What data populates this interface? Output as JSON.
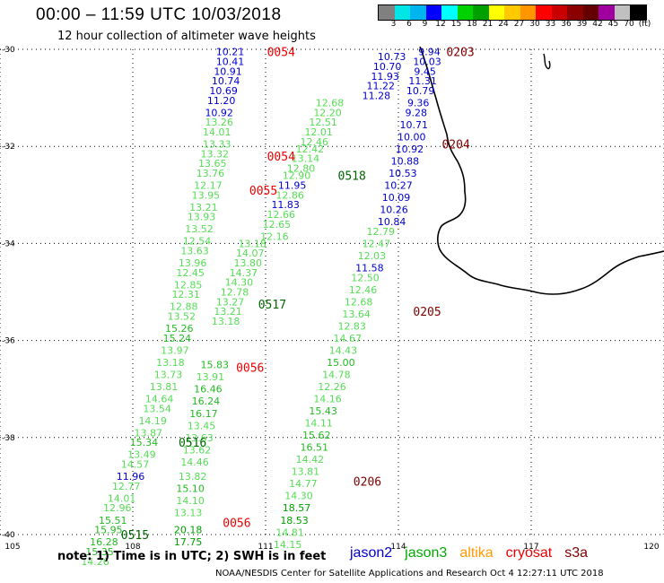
{
  "title": "00:00 – 11:59 UTC 10/03/2018",
  "subtitle": "12 hour collection of altimeter wave heights",
  "legend": {
    "colors": [
      "#808080",
      "#00e5e5",
      "#00b4f0",
      "#0000ff",
      "#00ffff",
      "#00d200",
      "#00a000",
      "#ffff00",
      "#ffc800",
      "#ff9600",
      "#ff0000",
      "#c80000",
      "#8b0000",
      "#640000",
      "#a000a0",
      "#c0c0c0",
      "#000000"
    ],
    "labels": [
      "3",
      "6",
      "9",
      "12",
      "15",
      "18",
      "21",
      "24",
      "27",
      "30",
      "33",
      "36",
      "39",
      "42",
      "45",
      "70",
      "(ft)"
    ]
  },
  "axes": {
    "x_ticks": [
      "105",
      "108",
      "111",
      "114",
      "117",
      "120"
    ],
    "y_ticks": [
      "-30",
      "-32",
      "-34",
      "-36",
      "-38",
      "-40"
    ]
  },
  "note": "note: 1) Time is in UTC; 2) SWH is in feet",
  "satellites": [
    {
      "name": "jason2",
      "color": "#0000cc"
    },
    {
      "name": "jason3",
      "color": "#00aa00"
    },
    {
      "name": "altika",
      "color": "#ff9900"
    },
    {
      "name": "cryosat",
      "color": "#ee0000"
    },
    {
      "name": "s3a",
      "color": "#800000"
    }
  ],
  "credit": "NOAA/NESDIS Center for Satellite Applications and Research   Oct  4 12:27:11 UTC 2018",
  "time_labels": [
    {
      "text": "0054",
      "lon": 111.35,
      "lat": -30.05,
      "color": "#ee0000"
    },
    {
      "text": "0054",
      "lon": 111.35,
      "lat": -32.2,
      "color": "#ee0000"
    },
    {
      "text": "0055",
      "lon": 110.95,
      "lat": -32.9,
      "color": "#ee0000"
    },
    {
      "text": "0056",
      "lon": 110.65,
      "lat": -36.55,
      "color": "#ee0000"
    },
    {
      "text": "0056",
      "lon": 110.35,
      "lat": -39.75,
      "color": "#ee0000"
    },
    {
      "text": "0203",
      "lon": 115.4,
      "lat": -30.05,
      "color": "#800000"
    },
    {
      "text": "0204",
      "lon": 115.3,
      "lat": -31.95,
      "color": "#800000"
    },
    {
      "text": "0205",
      "lon": 114.65,
      "lat": -35.4,
      "color": "#800000"
    },
    {
      "text": "0206",
      "lon": 113.3,
      "lat": -38.9,
      "color": "#800000"
    },
    {
      "text": "0518",
      "lon": 112.95,
      "lat": -32.6,
      "color": "#006600"
    },
    {
      "text": "0517",
      "lon": 111.15,
      "lat": -35.25,
      "color": "#006600"
    },
    {
      "text": "0516",
      "lon": 109.35,
      "lat": -38.1,
      "color": "#006600"
    },
    {
      "text": "0515",
      "lon": 108.05,
      "lat": -40.0,
      "color": "#006600"
    }
  ],
  "swh_values": [
    {
      "v": "10.21",
      "lon": 110.2,
      "lat": -30.05,
      "c": "#0000cc"
    },
    {
      "v": "10.41",
      "lon": 110.2,
      "lat": -30.25,
      "c": "#0000cc"
    },
    {
      "v": "10.91",
      "lon": 110.15,
      "lat": -30.45,
      "c": "#0000cc"
    },
    {
      "v": "10.74",
      "lon": 110.1,
      "lat": -30.65,
      "c": "#0000cc"
    },
    {
      "v": "10.69",
      "lon": 110.05,
      "lat": -30.85,
      "c": "#0000cc"
    },
    {
      "v": "11.20",
      "lon": 110.0,
      "lat": -31.05,
      "c": "#0000cc"
    },
    {
      "v": "10.92",
      "lon": 109.95,
      "lat": -31.3,
      "c": "#0000cc"
    },
    {
      "v": "13.26",
      "lon": 109.95,
      "lat": -31.5,
      "c": "#55dd55"
    },
    {
      "v": "14.01",
      "lon": 109.9,
      "lat": -31.7,
      "c": "#55dd55"
    },
    {
      "v": "13.33",
      "lon": 109.9,
      "lat": -31.95,
      "c": "#55dd55"
    },
    {
      "v": "13.32",
      "lon": 109.85,
      "lat": -32.15,
      "c": "#55dd55"
    },
    {
      "v": "13.65",
      "lon": 109.8,
      "lat": -32.35,
      "c": "#55dd55"
    },
    {
      "v": "13.76",
      "lon": 109.75,
      "lat": -32.55,
      "c": "#55dd55"
    },
    {
      "v": "12.17",
      "lon": 109.7,
      "lat": -32.8,
      "c": "#55dd55"
    },
    {
      "v": "13.95",
      "lon": 109.65,
      "lat": -33.0,
      "c": "#55dd55"
    },
    {
      "v": "13.21",
      "lon": 109.6,
      "lat": -33.25,
      "c": "#55dd55"
    },
    {
      "v": "13.93",
      "lon": 109.55,
      "lat": -33.45,
      "c": "#55dd55"
    },
    {
      "v": "13.52",
      "lon": 109.5,
      "lat": -33.7,
      "c": "#55dd55"
    },
    {
      "v": "12.54",
      "lon": 109.45,
      "lat": -33.95,
      "c": "#55dd55"
    },
    {
      "v": "13.63",
      "lon": 109.4,
      "lat": -34.15,
      "c": "#55dd55"
    },
    {
      "v": "13.96",
      "lon": 109.35,
      "lat": -34.4,
      "c": "#55dd55"
    },
    {
      "v": "12.45",
      "lon": 109.3,
      "lat": -34.6,
      "c": "#55dd55"
    },
    {
      "v": "12.85",
      "lon": 109.25,
      "lat": -34.85,
      "c": "#55dd55"
    },
    {
      "v": "12.31",
      "lon": 109.2,
      "lat": -35.05,
      "c": "#55dd55"
    },
    {
      "v": "12.88",
      "lon": 109.15,
      "lat": -35.3,
      "c": "#55dd55"
    },
    {
      "v": "13.52",
      "lon": 109.1,
      "lat": -35.5,
      "c": "#55dd55"
    },
    {
      "v": "15.26",
      "lon": 109.05,
      "lat": -35.75,
      "c": "#22bb22"
    },
    {
      "v": "15.24",
      "lon": 109.0,
      "lat": -35.95,
      "c": "#22bb22"
    },
    {
      "v": "13.97",
      "lon": 108.95,
      "lat": -36.2,
      "c": "#55dd55"
    },
    {
      "v": "13.18",
      "lon": 108.85,
      "lat": -36.45,
      "c": "#55dd55"
    },
    {
      "v": "13.73",
      "lon": 108.8,
      "lat": -36.7,
      "c": "#55dd55"
    },
    {
      "v": "13.81",
      "lon": 108.7,
      "lat": -36.95,
      "c": "#55dd55"
    },
    {
      "v": "14.64",
      "lon": 108.6,
      "lat": -37.2,
      "c": "#55dd55"
    },
    {
      "v": "13.54",
      "lon": 108.55,
      "lat": -37.4,
      "c": "#55dd55"
    },
    {
      "v": "14.19",
      "lon": 108.45,
      "lat": -37.65,
      "c": "#55dd55"
    },
    {
      "v": "13.87",
      "lon": 108.35,
      "lat": -37.9,
      "c": "#55dd55"
    },
    {
      "v": "15.34",
      "lon": 108.25,
      "lat": -38.1,
      "c": "#22bb22"
    },
    {
      "v": "13.49",
      "lon": 108.2,
      "lat": -38.35,
      "c": "#55dd55"
    },
    {
      "v": "14.57",
      "lon": 108.05,
      "lat": -38.55,
      "c": "#55dd55"
    },
    {
      "v": "11.96",
      "lon": 107.95,
      "lat": -38.8,
      "c": "#0000cc"
    },
    {
      "v": "12.77",
      "lon": 107.85,
      "lat": -39.0,
      "c": "#55dd55"
    },
    {
      "v": "14.01",
      "lon": 107.75,
      "lat": -39.25,
      "c": "#55dd55"
    },
    {
      "v": "12.96",
      "lon": 107.65,
      "lat": -39.45,
      "c": "#55dd55"
    },
    {
      "v": "15.51",
      "lon": 107.55,
      "lat": -39.7,
      "c": "#22bb22"
    },
    {
      "v": "15.95",
      "lon": 107.45,
      "lat": -39.9,
      "c": "#22bb22"
    },
    {
      "v": "16.28",
      "lon": 107.35,
      "lat": -40.15,
      "c": "#22bb22"
    },
    {
      "v": "15.35",
      "lon": 107.25,
      "lat": -40.35,
      "c": "#22bb22"
    },
    {
      "v": "14.26",
      "lon": 107.15,
      "lat": -40.55,
      "c": "#55dd55"
    },
    {
      "v": "14.07",
      "lon": 110.65,
      "lat": -34.2,
      "c": "#55dd55"
    },
    {
      "v": "13.18",
      "lon": 110.7,
      "lat": -34.0,
      "c": "#55dd55"
    },
    {
      "v": "13.80",
      "lon": 110.6,
      "lat": -34.4,
      "c": "#55dd55"
    },
    {
      "v": "14.37",
      "lon": 110.5,
      "lat": -34.6,
      "c": "#55dd55"
    },
    {
      "v": "14.30",
      "lon": 110.4,
      "lat": -34.8,
      "c": "#55dd55"
    },
    {
      "v": "12.78",
      "lon": 110.3,
      "lat": -35.0,
      "c": "#55dd55"
    },
    {
      "v": "13.27",
      "lon": 110.2,
      "lat": -35.2,
      "c": "#55dd55"
    },
    {
      "v": "13.21",
      "lon": 110.15,
      "lat": -35.4,
      "c": "#55dd55"
    },
    {
      "v": "13.18",
      "lon": 110.1,
      "lat": -35.6,
      "c": "#55dd55"
    },
    {
      "v": "15.83",
      "lon": 109.85,
      "lat": -36.5,
      "c": "#22bb22"
    },
    {
      "v": "13.91",
      "lon": 109.75,
      "lat": -36.75,
      "c": "#55dd55"
    },
    {
      "v": "16.46",
      "lon": 109.7,
      "lat": -37.0,
      "c": "#22bb22"
    },
    {
      "v": "16.24",
      "lon": 109.65,
      "lat": -37.25,
      "c": "#22bb22"
    },
    {
      "v": "16.17",
      "lon": 109.6,
      "lat": -37.5,
      "c": "#22bb22"
    },
    {
      "v": "13.45",
      "lon": 109.55,
      "lat": -37.75,
      "c": "#55dd55"
    },
    {
      "v": "13.63",
      "lon": 109.5,
      "lat": -38.0,
      "c": "#55dd55"
    },
    {
      "v": "13.62",
      "lon": 109.45,
      "lat": -38.25,
      "c": "#55dd55"
    },
    {
      "v": "14.46",
      "lon": 109.4,
      "lat": -38.5,
      "c": "#55dd55"
    },
    {
      "v": "13.82",
      "lon": 109.35,
      "lat": -38.8,
      "c": "#55dd55"
    },
    {
      "v": "15.10",
      "lon": 109.3,
      "lat": -39.05,
      "c": "#22bb22"
    },
    {
      "v": "14.10",
      "lon": 109.3,
      "lat": -39.3,
      "c": "#55dd55"
    },
    {
      "v": "13.13",
      "lon": 109.25,
      "lat": -39.55,
      "c": "#55dd55"
    },
    {
      "v": "20.18",
      "lon": 109.25,
      "lat": -39.9,
      "c": "#00a000"
    },
    {
      "v": "17.75",
      "lon": 109.25,
      "lat": -40.15,
      "c": "#00a000"
    },
    {
      "v": "12.68",
      "lon": 112.45,
      "lat": -31.1,
      "c": "#55dd55"
    },
    {
      "v": "12.20",
      "lon": 112.4,
      "lat": -31.3,
      "c": "#55dd55"
    },
    {
      "v": "12.51",
      "lon": 112.3,
      "lat": -31.5,
      "c": "#55dd55"
    },
    {
      "v": "12.01",
      "lon": 112.2,
      "lat": -31.7,
      "c": "#55dd55"
    },
    {
      "v": "12.46",
      "lon": 112.1,
      "lat": -31.9,
      "c": "#55dd55"
    },
    {
      "v": "12.42",
      "lon": 112.0,
      "lat": -32.05,
      "c": "#55dd55"
    },
    {
      "v": "13.14",
      "lon": 111.9,
      "lat": -32.25,
      "c": "#55dd55"
    },
    {
      "v": "12.80",
      "lon": 111.8,
      "lat": -32.45,
      "c": "#55dd55"
    },
    {
      "v": "12.90",
      "lon": 111.7,
      "lat": -32.6,
      "c": "#55dd55"
    },
    {
      "v": "11.95",
      "lon": 111.6,
      "lat": -32.8,
      "c": "#0000cc"
    },
    {
      "v": "12.86",
      "lon": 111.55,
      "lat": -33.0,
      "c": "#55dd55"
    },
    {
      "v": "11.83",
      "lon": 111.45,
      "lat": -33.2,
      "c": "#0000cc"
    },
    {
      "v": "12.66",
      "lon": 111.35,
      "lat": -33.4,
      "c": "#55dd55"
    },
    {
      "v": "12.65",
      "lon": 111.25,
      "lat": -33.6,
      "c": "#55dd55"
    },
    {
      "v": "12.16",
      "lon": 111.2,
      "lat": -33.85,
      "c": "#55dd55"
    },
    {
      "v": "10.73",
      "lon": 113.85,
      "lat": -30.15,
      "c": "#0000cc"
    },
    {
      "v": "10.70",
      "lon": 113.75,
      "lat": -30.35,
      "c": "#0000cc"
    },
    {
      "v": "11.93",
      "lon": 113.7,
      "lat": -30.55,
      "c": "#0000cc"
    },
    {
      "v": "11.22",
      "lon": 113.6,
      "lat": -30.75,
      "c": "#0000cc"
    },
    {
      "v": "11.28",
      "lon": 113.5,
      "lat": -30.95,
      "c": "#0000cc"
    },
    {
      "v": "12.79",
      "lon": 113.6,
      "lat": -33.75,
      "c": "#55dd55"
    },
    {
      "v": "12.47",
      "lon": 113.5,
      "lat": -34.0,
      "c": "#55dd55"
    },
    {
      "v": "12.03",
      "lon": 113.4,
      "lat": -34.25,
      "c": "#55dd55"
    },
    {
      "v": "11.58",
      "lon": 113.35,
      "lat": -34.5,
      "c": "#0000cc"
    },
    {
      "v": "12.50",
      "lon": 113.25,
      "lat": -34.7,
      "c": "#55dd55"
    },
    {
      "v": "12.46",
      "lon": 113.2,
      "lat": -34.95,
      "c": "#55dd55"
    },
    {
      "v": "12.68",
      "lon": 113.1,
      "lat": -35.2,
      "c": "#55dd55"
    },
    {
      "v": "13.64",
      "lon": 113.05,
      "lat": -35.45,
      "c": "#55dd55"
    },
    {
      "v": "12.83",
      "lon": 112.95,
      "lat": -35.7,
      "c": "#55dd55"
    },
    {
      "v": "14.67",
      "lon": 112.85,
      "lat": -35.95,
      "c": "#55dd55"
    },
    {
      "v": "14.43",
      "lon": 112.75,
      "lat": -36.2,
      "c": "#55dd55"
    },
    {
      "v": "15.00",
      "lon": 112.7,
      "lat": -36.45,
      "c": "#22bb22"
    },
    {
      "v": "14.78",
      "lon": 112.6,
      "lat": -36.7,
      "c": "#55dd55"
    },
    {
      "v": "12.26",
      "lon": 112.5,
      "lat": -36.95,
      "c": "#55dd55"
    },
    {
      "v": "14.16",
      "lon": 112.4,
      "lat": -37.2,
      "c": "#55dd55"
    },
    {
      "v": "15.43",
      "lon": 112.3,
      "lat": -37.45,
      "c": "#22bb22"
    },
    {
      "v": "14.11",
      "lon": 112.2,
      "lat": -37.7,
      "c": "#55dd55"
    },
    {
      "v": "15.62",
      "lon": 112.15,
      "lat": -37.95,
      "c": "#22bb22"
    },
    {
      "v": "16.51",
      "lon": 112.1,
      "lat": -38.2,
      "c": "#22bb22"
    },
    {
      "v": "14.42",
      "lon": 112.0,
      "lat": -38.45,
      "c": "#55dd55"
    },
    {
      "v": "13.81",
      "lon": 111.9,
      "lat": -38.7,
      "c": "#55dd55"
    },
    {
      "v": "14.77",
      "lon": 111.85,
      "lat": -38.95,
      "c": "#55dd55"
    },
    {
      "v": "14.30",
      "lon": 111.75,
      "lat": -39.2,
      "c": "#55dd55"
    },
    {
      "v": "18.57",
      "lon": 111.7,
      "lat": -39.45,
      "c": "#00a000"
    },
    {
      "v": "18.53",
      "lon": 111.65,
      "lat": -39.7,
      "c": "#00a000"
    },
    {
      "v": "14.81",
      "lon": 111.55,
      "lat": -39.95,
      "c": "#55dd55"
    },
    {
      "v": "14.15",
      "lon": 111.5,
      "lat": -40.2,
      "c": "#55dd55"
    },
    {
      "v": "9.94",
      "lon": 114.7,
      "lat": -30.05,
      "c": "#0000cc"
    },
    {
      "v": "10.03",
      "lon": 114.65,
      "lat": -30.25,
      "c": "#0000cc"
    },
    {
      "v": "9.45",
      "lon": 114.6,
      "lat": -30.45,
      "c": "#0000cc"
    },
    {
      "v": "11.31",
      "lon": 114.55,
      "lat": -30.65,
      "c": "#0000cc"
    },
    {
      "v": "10.79",
      "lon": 114.5,
      "lat": -30.85,
      "c": "#0000cc"
    },
    {
      "v": "9.36",
      "lon": 114.45,
      "lat": -31.1,
      "c": "#0000cc"
    },
    {
      "v": "9.28",
      "lon": 114.4,
      "lat": -31.3,
      "c": "#0000cc"
    },
    {
      "v": "10.71",
      "lon": 114.35,
      "lat": -31.55,
      "c": "#0000cc"
    },
    {
      "v": "10.00",
      "lon": 114.3,
      "lat": -31.8,
      "c": "#0000cc"
    },
    {
      "v": "10.92",
      "lon": 114.25,
      "lat": -32.05,
      "c": "#0000cc"
    },
    {
      "v": "10.88",
      "lon": 114.15,
      "lat": -32.3,
      "c": "#0000cc"
    },
    {
      "v": "10.53",
      "lon": 114.1,
      "lat": -32.55,
      "c": "#0000cc"
    },
    {
      "v": "10.27",
      "lon": 114.0,
      "lat": -32.8,
      "c": "#0000cc"
    },
    {
      "v": "10.09",
      "lon": 113.95,
      "lat": -33.05,
      "c": "#0000cc"
    },
    {
      "v": "10.26",
      "lon": 113.9,
      "lat": -33.3,
      "c": "#0000cc"
    },
    {
      "v": "10.84",
      "lon": 113.85,
      "lat": -33.55,
      "c": "#0000cc"
    }
  ]
}
